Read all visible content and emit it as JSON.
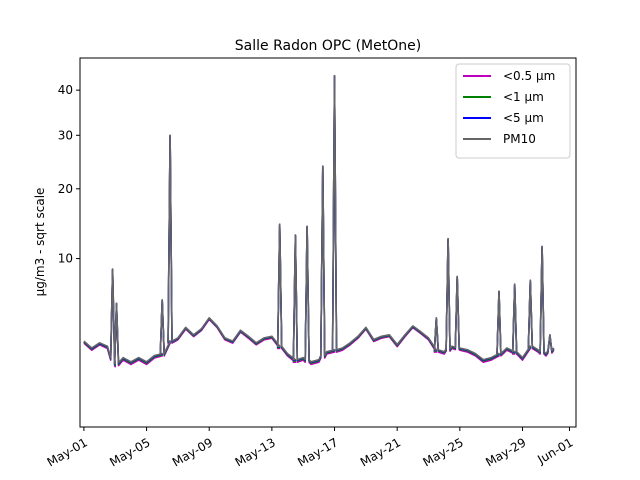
{
  "chart_data": {
    "type": "line",
    "title": "Salle Radon OPC (MetOne)",
    "xlabel": "",
    "ylabel": "µg/m3 - sqrt scale",
    "y_scale": "sqrt",
    "xlim": [
      "2023-04-30T18:00",
      "2023-06-01T10:00"
    ],
    "ylim": [
      0,
      48
    ],
    "x_ticks": [
      "2023-05-01",
      "2023-05-05",
      "2023-05-09",
      "2023-05-13",
      "2023-05-17",
      "2023-05-21",
      "2023-05-25",
      "2023-05-29",
      "2023-06-01"
    ],
    "x_tick_labels": [
      "May-01",
      "May-05",
      "May-09",
      "May-13",
      "May-17",
      "May-21",
      "May-25",
      "May-29",
      "Jun-01"
    ],
    "y_ticks": [
      10,
      20,
      30,
      40
    ],
    "y_tick_labels": [
      "10",
      "20",
      "30",
      "40"
    ],
    "legend_position": "upper right",
    "series": [
      {
        "name": "<0.5 µm",
        "color": "#bf00bf",
        "offset": -0.12
      },
      {
        "name": "<1 µm",
        "color": "#008000",
        "offset": -0.06
      },
      {
        "name": "<5 µm",
        "color": "#0000ff",
        "offset": -0.02
      },
      {
        "name": "PM10",
        "color": "#666666",
        "offset": 0
      }
    ],
    "base": {
      "x": [
        "2023-05-01T00:00",
        "2023-05-01T12:00",
        "2023-05-02T00:00",
        "2023-05-02T12:00",
        "2023-05-03T00:00",
        "2023-05-03T12:00",
        "2023-05-04T00:00",
        "2023-05-04T12:00",
        "2023-05-05T00:00",
        "2023-05-05T12:00",
        "2023-05-06T00:00",
        "2023-05-06T12:00",
        "2023-05-07T00:00",
        "2023-05-07T12:00",
        "2023-05-08T00:00",
        "2023-05-08T12:00",
        "2023-05-09T00:00",
        "2023-05-09T12:00",
        "2023-05-10T00:00",
        "2023-05-10T12:00",
        "2023-05-11T00:00",
        "2023-05-11T12:00",
        "2023-05-12T00:00",
        "2023-05-12T12:00",
        "2023-05-13T00:00",
        "2023-05-13T12:00",
        "2023-05-14T00:00",
        "2023-05-14T12:00",
        "2023-05-15T00:00",
        "2023-05-15T12:00",
        "2023-05-16T00:00",
        "2023-05-16T12:00",
        "2023-05-17T00:00",
        "2023-05-17T12:00",
        "2023-05-18T00:00",
        "2023-05-18T12:00",
        "2023-05-19T00:00",
        "2023-05-19T12:00",
        "2023-05-20T00:00",
        "2023-05-20T12:00",
        "2023-05-21T00:00",
        "2023-05-21T12:00",
        "2023-05-22T00:00",
        "2023-05-22T12:00",
        "2023-05-23T00:00",
        "2023-05-23T12:00",
        "2023-05-24T00:00",
        "2023-05-24T12:00",
        "2023-05-25T00:00",
        "2023-05-25T12:00",
        "2023-05-26T00:00",
        "2023-05-26T12:00",
        "2023-05-27T00:00",
        "2023-05-27T12:00",
        "2023-05-28T00:00",
        "2023-05-28T12:00",
        "2023-05-29T00:00",
        "2023-05-29T12:00",
        "2023-05-30T00:00",
        "2023-05-30T12:00",
        "2023-05-31T00:00"
      ],
      "y": [
        2.6,
        2.2,
        2.5,
        2.3,
        1.4,
        1.7,
        1.5,
        1.7,
        1.5,
        1.8,
        1.9,
        2.6,
        2.8,
        3.5,
        3.0,
        3.4,
        4.2,
        3.6,
        2.8,
        2.6,
        3.3,
        2.9,
        2.5,
        2.8,
        2.9,
        2.3,
        1.9,
        1.6,
        1.7,
        1.5,
        1.6,
        2.0,
        2.1,
        2.2,
        2.5,
        2.9,
        3.5,
        2.7,
        2.9,
        3.0,
        2.4,
        3.0,
        3.6,
        3.2,
        2.8,
        2.1,
        2.0,
        2.3,
        2.2,
        2.1,
        1.9,
        1.6,
        1.7,
        1.9,
        2.2,
        2.0,
        1.7,
        2.3,
        2.1,
        1.9,
        2.2
      ]
    },
    "spikes": [
      {
        "x": "2023-05-02T20:00",
        "y": 8.8
      },
      {
        "x": "2023-05-03T02:00",
        "y": 5.4
      },
      {
        "x": "2023-05-06T00:00",
        "y": 5.7
      },
      {
        "x": "2023-05-06T12:00",
        "y": 30.0
      },
      {
        "x": "2023-05-13T12:00",
        "y": 14.5
      },
      {
        "x": "2023-05-14T12:00",
        "y": 13.0
      },
      {
        "x": "2023-05-15T06:00",
        "y": 14.2
      },
      {
        "x": "2023-05-16T06:00",
        "y": 24.0
      },
      {
        "x": "2023-05-17T00:00",
        "y": 43.5
      },
      {
        "x": "2023-05-23T12:00",
        "y": 4.2
      },
      {
        "x": "2023-05-24T06:00",
        "y": 12.5
      },
      {
        "x": "2023-05-24T20:00",
        "y": 8.0
      },
      {
        "x": "2023-05-27T12:00",
        "y": 6.5
      },
      {
        "x": "2023-05-28T12:00",
        "y": 7.2
      },
      {
        "x": "2023-05-29T12:00",
        "y": 7.6
      },
      {
        "x": "2023-05-30T06:00",
        "y": 11.5
      },
      {
        "x": "2023-05-30T18:00",
        "y": 3.0
      }
    ]
  }
}
